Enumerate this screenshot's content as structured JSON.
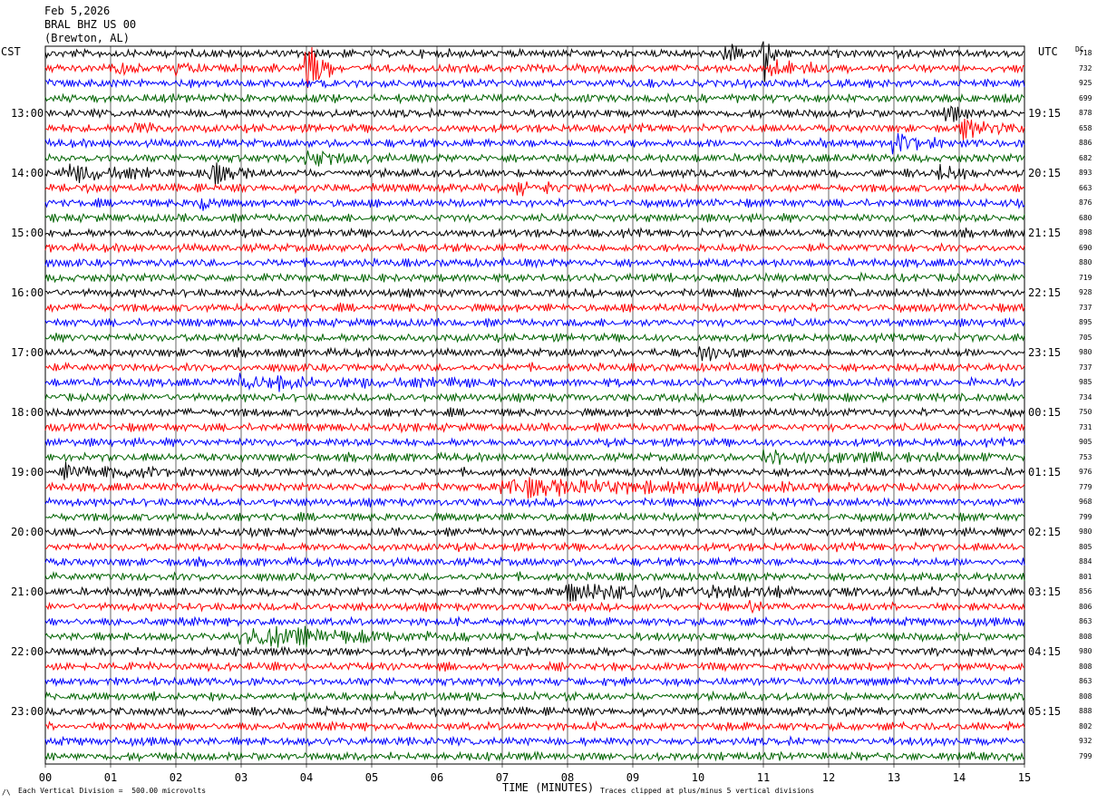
{
  "header": {
    "date": "Feb 5,2026",
    "station": "BRAL BHZ US 00",
    "location": "(Brewton, AL)",
    "left_zone": "CST",
    "right_zone": "UTC",
    "dc_label": "DC"
  },
  "footer": {
    "scale_note": "Each Vertical Division =  500.00 microvolts",
    "clip_note": "Traces clipped at plus/minus 5 vertical divisions",
    "corner_mark": "/\\"
  },
  "chart_data": {
    "type": "line",
    "title": "",
    "xlabel": "TIME (MINUTES)",
    "xlim": [
      0,
      15
    ],
    "x_ticks": [
      "00",
      "01",
      "02",
      "03",
      "04",
      "05",
      "06",
      "07",
      "08",
      "09",
      "10",
      "11",
      "12",
      "13",
      "14",
      "15"
    ],
    "trace_colors": [
      "#000000",
      "#ff0000",
      "#0000ff",
      "#006400"
    ],
    "trace_count": 48,
    "left_hour_labels": [
      "13:00",
      "14:00",
      "15:00",
      "16:00",
      "17:00",
      "18:00",
      "19:00",
      "20:00",
      "21:00",
      "22:00",
      "23:00"
    ],
    "right_hour_labels": [
      "19:15",
      "20:15",
      "21:15",
      "22:15",
      "23:15",
      "00:15",
      "01:15",
      "02:15",
      "03:15",
      "04:15",
      "05:15"
    ],
    "dc_offsets": [
      "718",
      "732",
      "925",
      "699",
      "878",
      "658",
      "886",
      "682",
      "893",
      "663",
      "876",
      "680",
      "898",
      "690",
      "880",
      "719",
      "928",
      "737",
      "895",
      "705",
      "980",
      "737",
      "985",
      "734",
      "750",
      "731",
      "905",
      "753",
      "976",
      "779",
      "968",
      "799",
      "980",
      "805",
      "884",
      "801",
      "856",
      "806",
      "863",
      "808",
      "980",
      "808",
      "863",
      "808",
      "888",
      "802",
      "932",
      "799"
    ],
    "events": [
      {
        "row": 0,
        "minute": 10.4,
        "amp": 4,
        "dur": 0.3
      },
      {
        "row": 0,
        "minute": 11.0,
        "amp": 10,
        "dur": 0.25
      },
      {
        "row": 1,
        "minute": 4.0,
        "amp": 9,
        "dur": 0.4
      },
      {
        "row": 1,
        "minute": 1.1,
        "amp": 1.8,
        "dur": 0.4
      },
      {
        "row": 1,
        "minute": 2.0,
        "amp": 2,
        "dur": 0.6
      },
      {
        "row": 1,
        "minute": 11.1,
        "amp": 2,
        "dur": 1.0
      },
      {
        "row": 4,
        "minute": 13.8,
        "amp": 3,
        "dur": 0.4
      },
      {
        "row": 5,
        "minute": 1.3,
        "amp": 3,
        "dur": 0.5
      },
      {
        "row": 5,
        "minute": 14.0,
        "amp": 3,
        "dur": 1.0
      },
      {
        "row": 6,
        "minute": 13.0,
        "amp": 2.5,
        "dur": 1.0
      },
      {
        "row": 6,
        "minute": 11.9,
        "amp": 2,
        "dur": 0.2
      },
      {
        "row": 7,
        "minute": 4.0,
        "amp": 2.2,
        "dur": 1.2
      },
      {
        "row": 8,
        "minute": 0.3,
        "amp": 2.5,
        "dur": 1.5
      },
      {
        "row": 8,
        "minute": 2.5,
        "amp": 3,
        "dur": 0.7
      },
      {
        "row": 8,
        "minute": 13.7,
        "amp": 2,
        "dur": 0.6
      },
      {
        "row": 9,
        "minute": 7.2,
        "amp": 2,
        "dur": 1.0
      },
      {
        "row": 10,
        "minute": 2.4,
        "amp": 2,
        "dur": 0.3
      },
      {
        "row": 20,
        "minute": 10.0,
        "amp": 3,
        "dur": 0.8
      },
      {
        "row": 22,
        "minute": 3.0,
        "amp": 1.7,
        "dur": 3.5
      },
      {
        "row": 27,
        "minute": 11.0,
        "amp": 1.5,
        "dur": 4.0
      },
      {
        "row": 28,
        "minute": 0.3,
        "amp": 1.7,
        "dur": 2.2
      },
      {
        "row": 29,
        "minute": 7.0,
        "amp": 2.2,
        "dur": 6.0
      },
      {
        "row": 36,
        "minute": 8.0,
        "amp": 1.8,
        "dur": 6.0
      },
      {
        "row": 37,
        "minute": 10.8,
        "amp": 2,
        "dur": 0.4
      },
      {
        "row": 39,
        "minute": 3.0,
        "amp": 2.8,
        "dur": 3.5
      }
    ]
  }
}
